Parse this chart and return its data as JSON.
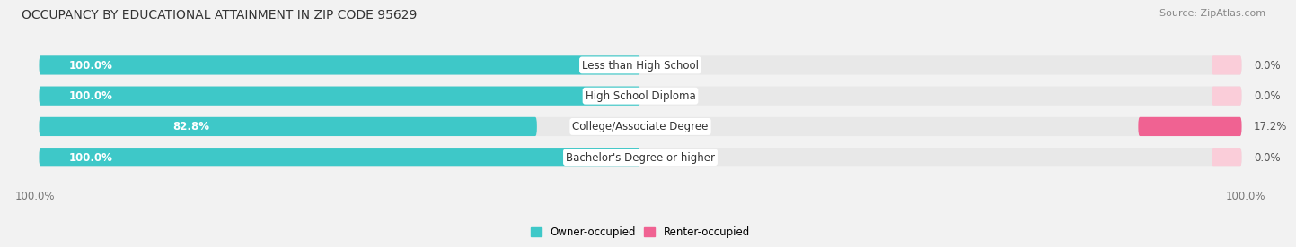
{
  "title": "OCCUPANCY BY EDUCATIONAL ATTAINMENT IN ZIP CODE 95629",
  "source": "Source: ZipAtlas.com",
  "categories": [
    "Less than High School",
    "High School Diploma",
    "College/Associate Degree",
    "Bachelor's Degree or higher"
  ],
  "owner_values": [
    100.0,
    100.0,
    82.8,
    100.0
  ],
  "renter_values": [
    0.0,
    0.0,
    17.2,
    0.0
  ],
  "owner_color": "#3EC8C8",
  "renter_color": "#F06292",
  "owner_color_light": "#B2E8E8",
  "renter_color_light": "#FACDD9",
  "bar_bg_color": "#E8E8E8",
  "bg_color": "#F2F2F2",
  "title_fontsize": 10,
  "source_fontsize": 8,
  "label_fontsize": 8.5,
  "cat_fontsize": 8.5,
  "legend_fontsize": 8.5,
  "value_fontsize": 8.5,
  "axis_label_left": "100.0%",
  "axis_label_right": "100.0%"
}
